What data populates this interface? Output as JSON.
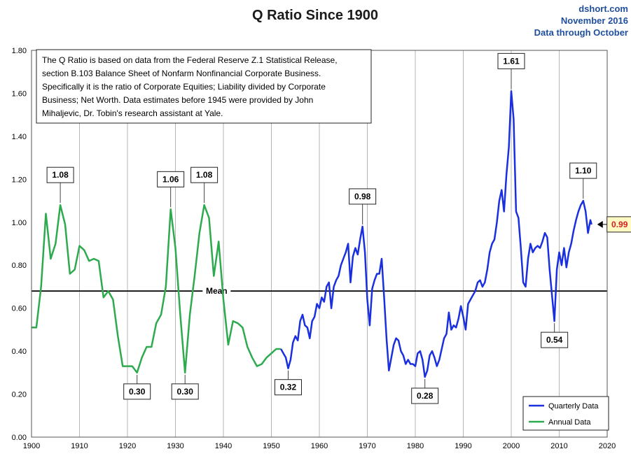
{
  "chart_data": {
    "type": "line",
    "title": "Q Ratio Since 1900",
    "source": [
      "dshort.com",
      "November 2016",
      "Data through October"
    ],
    "xlim": [
      1900,
      2020
    ],
    "ylim": [
      0.0,
      1.8
    ],
    "x_ticks": [
      1900,
      1910,
      1920,
      1930,
      1940,
      1950,
      1960,
      1970,
      1980,
      1990,
      2000,
      2010,
      2020
    ],
    "y_ticks": [
      "0.00",
      "0.20",
      "0.40",
      "0.60",
      "0.80",
      "1.00",
      "1.20",
      "1.40",
      "1.60",
      "1.80"
    ],
    "grid": "vertical",
    "mean": {
      "label": "Mean",
      "value": 0.68
    },
    "note": [
      "The Q Ratio is based on data from the Federal Reserve Z.1 Statistical Release,",
      "section B.103 Balance Sheet of Nonfarm Nonfinancial Corporate Business.",
      "Specifically it is the ratio  of Corporate Equities; Liability divided by Corporate",
      "Business; Net Worth.  Data estimates before 1945 were provided by John",
      "Mihaljevic, Dr. Tobin's research assistant at Yale."
    ],
    "series": [
      {
        "name": "Annual Data",
        "color": "#2eaa4e",
        "points": [
          [
            1900,
            0.51
          ],
          [
            1901,
            0.51
          ],
          [
            1902,
            0.7
          ],
          [
            1903,
            1.04
          ],
          [
            1904,
            0.83
          ],
          [
            1905,
            0.9
          ],
          [
            1906,
            1.08
          ],
          [
            1907,
            0.99
          ],
          [
            1908,
            0.76
          ],
          [
            1909,
            0.78
          ],
          [
            1910,
            0.89
          ],
          [
            1911,
            0.87
          ],
          [
            1912,
            0.82
          ],
          [
            1913,
            0.83
          ],
          [
            1914,
            0.82
          ],
          [
            1915,
            0.65
          ],
          [
            1916,
            0.68
          ],
          [
            1917,
            0.64
          ],
          [
            1918,
            0.47
          ],
          [
            1919,
            0.33
          ],
          [
            1920,
            0.33
          ],
          [
            1921,
            0.33
          ],
          [
            1922,
            0.3
          ],
          [
            1923,
            0.37
          ],
          [
            1924,
            0.42
          ],
          [
            1925,
            0.42
          ],
          [
            1926,
            0.53
          ],
          [
            1927,
            0.57
          ],
          [
            1928,
            0.7
          ],
          [
            1929,
            1.06
          ],
          [
            1930,
            0.88
          ],
          [
            1931,
            0.57
          ],
          [
            1932,
            0.3
          ],
          [
            1933,
            0.57
          ],
          [
            1934,
            0.75
          ],
          [
            1935,
            0.95
          ],
          [
            1936,
            1.08
          ],
          [
            1937,
            1.02
          ],
          [
            1938,
            0.75
          ],
          [
            1939,
            0.91
          ],
          [
            1940,
            0.64
          ],
          [
            1941,
            0.43
          ],
          [
            1942,
            0.54
          ],
          [
            1943,
            0.53
          ],
          [
            1944,
            0.51
          ],
          [
            1945,
            0.42
          ],
          [
            1946,
            0.37
          ],
          [
            1947,
            0.33
          ],
          [
            1948,
            0.34
          ],
          [
            1949,
            0.37
          ],
          [
            1950,
            0.39
          ],
          [
            1951,
            0.41
          ],
          [
            1952,
            0.41
          ]
        ]
      },
      {
        "name": "Quarterly Data",
        "color": "#1a2fe0",
        "points": [
          [
            1952,
            0.41
          ],
          [
            1952.5,
            0.39
          ],
          [
            1953,
            0.37
          ],
          [
            1953.5,
            0.32
          ],
          [
            1954,
            0.36
          ],
          [
            1954.5,
            0.44
          ],
          [
            1955,
            0.47
          ],
          [
            1955.5,
            0.45
          ],
          [
            1956,
            0.54
          ],
          [
            1956.5,
            0.57
          ],
          [
            1957,
            0.52
          ],
          [
            1957.5,
            0.51
          ],
          [
            1958,
            0.46
          ],
          [
            1958.5,
            0.54
          ],
          [
            1959,
            0.56
          ],
          [
            1959.5,
            0.62
          ],
          [
            1960,
            0.6
          ],
          [
            1960.5,
            0.65
          ],
          [
            1961,
            0.63
          ],
          [
            1961.5,
            0.7
          ],
          [
            1962,
            0.72
          ],
          [
            1962.5,
            0.6
          ],
          [
            1963,
            0.7
          ],
          [
            1963.5,
            0.73
          ],
          [
            1964,
            0.75
          ],
          [
            1964.5,
            0.8
          ],
          [
            1965,
            0.83
          ],
          [
            1965.5,
            0.86
          ],
          [
            1966,
            0.9
          ],
          [
            1966.5,
            0.72
          ],
          [
            1967,
            0.84
          ],
          [
            1967.5,
            0.88
          ],
          [
            1968,
            0.85
          ],
          [
            1968.5,
            0.92
          ],
          [
            1969,
            0.98
          ],
          [
            1969.5,
            0.86
          ],
          [
            1970,
            0.64
          ],
          [
            1970.5,
            0.52
          ],
          [
            1971,
            0.69
          ],
          [
            1971.5,
            0.73
          ],
          [
            1972,
            0.76
          ],
          [
            1972.5,
            0.76
          ],
          [
            1973,
            0.83
          ],
          [
            1973.5,
            0.65
          ],
          [
            1974,
            0.46
          ],
          [
            1974.5,
            0.31
          ],
          [
            1975,
            0.37
          ],
          [
            1975.5,
            0.43
          ],
          [
            1976,
            0.46
          ],
          [
            1976.5,
            0.45
          ],
          [
            1977,
            0.4
          ],
          [
            1977.5,
            0.38
          ],
          [
            1978,
            0.34
          ],
          [
            1978.5,
            0.36
          ],
          [
            1979,
            0.34
          ],
          [
            1979.5,
            0.34
          ],
          [
            1980,
            0.33
          ],
          [
            1980.5,
            0.39
          ],
          [
            1981,
            0.4
          ],
          [
            1981.5,
            0.36
          ],
          [
            1982,
            0.28
          ],
          [
            1982.5,
            0.31
          ],
          [
            1983,
            0.38
          ],
          [
            1983.5,
            0.4
          ],
          [
            1984,
            0.37
          ],
          [
            1984.5,
            0.33
          ],
          [
            1985,
            0.36
          ],
          [
            1985.5,
            0.41
          ],
          [
            1986,
            0.46
          ],
          [
            1986.5,
            0.48
          ],
          [
            1987,
            0.58
          ],
          [
            1987.5,
            0.5
          ],
          [
            1988,
            0.52
          ],
          [
            1988.5,
            0.51
          ],
          [
            1989,
            0.55
          ],
          [
            1989.5,
            0.61
          ],
          [
            1990,
            0.56
          ],
          [
            1990.5,
            0.5
          ],
          [
            1991,
            0.62
          ],
          [
            1991.5,
            0.64
          ],
          [
            1992,
            0.66
          ],
          [
            1992.5,
            0.68
          ],
          [
            1993,
            0.72
          ],
          [
            1993.5,
            0.73
          ],
          [
            1994,
            0.7
          ],
          [
            1994.5,
            0.72
          ],
          [
            1995,
            0.78
          ],
          [
            1995.5,
            0.86
          ],
          [
            1996,
            0.9
          ],
          [
            1996.5,
            0.92
          ],
          [
            1997,
            1.0
          ],
          [
            1997.5,
            1.1
          ],
          [
            1998,
            1.15
          ],
          [
            1998.5,
            1.05
          ],
          [
            1999,
            1.22
          ],
          [
            1999.5,
            1.35
          ],
          [
            2000,
            1.61
          ],
          [
            2000.5,
            1.48
          ],
          [
            2001,
            1.05
          ],
          [
            2001.5,
            1.02
          ],
          [
            2002,
            0.88
          ],
          [
            2002.5,
            0.72
          ],
          [
            2003,
            0.7
          ],
          [
            2003.5,
            0.83
          ],
          [
            2004,
            0.9
          ],
          [
            2004.5,
            0.86
          ],
          [
            2005,
            0.88
          ],
          [
            2005.5,
            0.89
          ],
          [
            2006,
            0.88
          ],
          [
            2006.5,
            0.91
          ],
          [
            2007,
            0.95
          ],
          [
            2007.5,
            0.93
          ],
          [
            2008,
            0.78
          ],
          [
            2008.5,
            0.66
          ],
          [
            2009,
            0.54
          ],
          [
            2009.5,
            0.78
          ],
          [
            2010,
            0.86
          ],
          [
            2010.5,
            0.8
          ],
          [
            2011,
            0.88
          ],
          [
            2011.5,
            0.79
          ],
          [
            2012,
            0.86
          ],
          [
            2012.5,
            0.9
          ],
          [
            2013,
            0.96
          ],
          [
            2013.5,
            1.01
          ],
          [
            2014,
            1.05
          ],
          [
            2014.5,
            1.08
          ],
          [
            2015,
            1.1
          ],
          [
            2015.5,
            1.05
          ],
          [
            2016,
            0.95
          ],
          [
            2016.5,
            1.01
          ],
          [
            2016.75,
            0.99
          ]
        ]
      }
    ],
    "annotations": [
      {
        "text": "1.08",
        "x": 1906,
        "y": 1.08,
        "position": "above"
      },
      {
        "text": "0.30",
        "x": 1922,
        "y": 0.3,
        "position": "below"
      },
      {
        "text": "1.06",
        "x": 1929,
        "y": 1.06,
        "position": "above"
      },
      {
        "text": "0.30",
        "x": 1932,
        "y": 0.3,
        "position": "below"
      },
      {
        "text": "1.08",
        "x": 1936,
        "y": 1.08,
        "position": "above"
      },
      {
        "text": "0.32",
        "x": 1953.5,
        "y": 0.32,
        "position": "below"
      },
      {
        "text": "0.98",
        "x": 1969,
        "y": 0.98,
        "position": "above"
      },
      {
        "text": "0.28",
        "x": 1982,
        "y": 0.28,
        "position": "below"
      },
      {
        "text": "1.61",
        "x": 2000,
        "y": 1.61,
        "position": "above"
      },
      {
        "text": "0.54",
        "x": 2009,
        "y": 0.54,
        "position": "below"
      },
      {
        "text": "1.10",
        "x": 2015,
        "y": 1.1,
        "position": "above"
      }
    ],
    "latest": {
      "text": "0.99",
      "x": 2016.75,
      "y": 0.99
    },
    "legend": {
      "placement": "bottom-right",
      "entries": [
        {
          "label": "Quarterly Data",
          "color": "#1a2fe0"
        },
        {
          "label": "Annual Data",
          "color": "#2eaa4e"
        }
      ]
    }
  }
}
